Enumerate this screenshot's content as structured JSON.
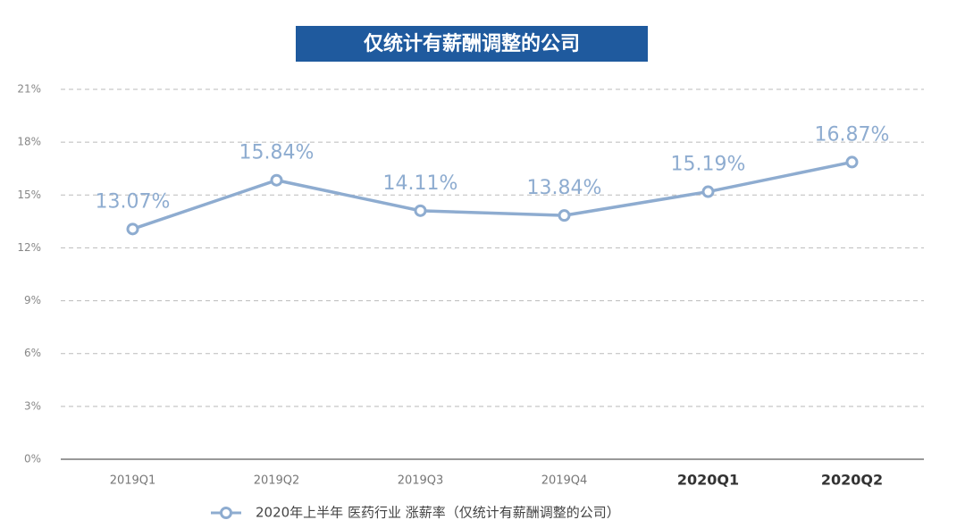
{
  "chart_data": {
    "type": "line",
    "title": "仅统计有薪酬调整的公司",
    "categories": [
      "2019Q1",
      "2019Q2",
      "2019Q3",
      "2019Q4",
      "2020Q1",
      "2020Q2"
    ],
    "series": [
      {
        "name": "2020年上半年 医药行业 涨薪率（仅统计有薪酬调整的公司）",
        "color": "#8eacd0",
        "values": [
          13.07,
          15.84,
          14.11,
          13.84,
          15.19,
          16.87
        ],
        "value_labels": [
          "13.07%",
          "15.84%",
          "14.11%",
          "13.84%",
          "15.19%",
          "16.87%"
        ]
      }
    ],
    "ylim": [
      0,
      21
    ],
    "yticks": [
      {
        "value": 0,
        "label": "0%"
      },
      {
        "value": 3,
        "label": "3%"
      },
      {
        "value": 6,
        "label": "6%"
      },
      {
        "value": 9,
        "label": "9%"
      },
      {
        "value": 12,
        "label": "12%"
      },
      {
        "value": 15,
        "label": "15%"
      },
      {
        "value": 18,
        "label": "18%"
      },
      {
        "value": 21,
        "label": "21%"
      }
    ],
    "grid": true
  }
}
